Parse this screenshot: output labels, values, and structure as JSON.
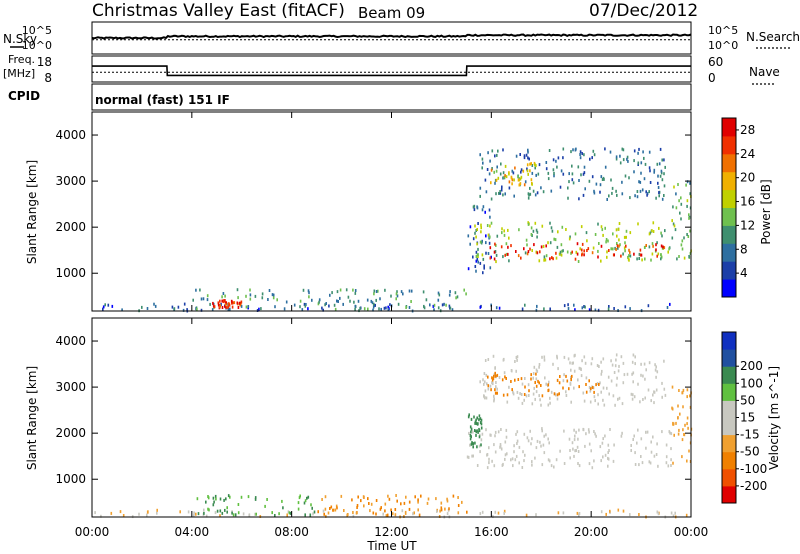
{
  "header": {
    "title": "Christmas Valley East (fitACF)",
    "beam": "Beam 09",
    "date": "07/Dec/2012"
  },
  "labels": {
    "nsky": "N.Sky",
    "nsearch": "N.Search",
    "freq": "Freq.",
    "mhz": "[MHz]",
    "nave": "Nave",
    "cpid": "CPID",
    "cpid_value": "normal (fast) 151 IF"
  },
  "ticks": {
    "noise_left": [
      "10^5",
      "10^0"
    ],
    "noise_right": [
      "10^5",
      "10^0"
    ],
    "freq_left": [
      "18",
      "8"
    ],
    "nave_right": [
      "60",
      "0"
    ]
  },
  "colors": {
    "power": [
      "#0000ff",
      "#1c3fa8",
      "#2e6fa0",
      "#3f8f6f",
      "#6fc04f",
      "#c0d000",
      "#f0b000",
      "#f07000",
      "#f03000",
      "#e00000"
    ],
    "velocity": [
      "#e00000",
      "#f05000",
      "#f08000",
      "#f0a030",
      "#c8c8c0",
      "#c8c8c0",
      "#60c040",
      "#3a8a50",
      "#2050a0",
      "#1030c0"
    ]
  },
  "chart_data": [
    {
      "type": "line",
      "name": "noise-panel",
      "series": [
        {
          "name": "N.Sky",
          "x": [
            "00:00",
            "03:00",
            "03:01",
            "15:00",
            "15:01",
            "24:00"
          ],
          "y_exp": [
            2.5,
            2.5,
            2.8,
            2.8,
            3.0,
            3.0
          ]
        },
        {
          "name": "N.Search",
          "x": [
            "00:00",
            "24:00"
          ],
          "y_exp": [
            2.2,
            2.2
          ]
        }
      ],
      "ylim_exp": [
        0,
        5
      ]
    },
    {
      "type": "line",
      "name": "freq-nave-panel",
      "series": [
        {
          "name": "Freq. [MHz]",
          "x": [
            "00:00",
            "03:00",
            "03:01",
            "15:00",
            "15:01",
            "24:00"
          ],
          "y": [
            14.3,
            14.3,
            10.1,
            10.1,
            14.3,
            14.3
          ]
        },
        {
          "name": "Nave",
          "x": [
            "00:00",
            "24:00"
          ],
          "y": [
            21,
            21
          ]
        }
      ],
      "ylim_freq": [
        8,
        18
      ],
      "ylim_nave": [
        0,
        60
      ]
    },
    {
      "type": "heatmap",
      "name": "power-panel",
      "xlabel": "",
      "ylabel": "Slant Range [km]",
      "xlim": [
        "00:00",
        "24:00"
      ],
      "ylim": [
        180,
        4500
      ],
      "yticks": [
        1000,
        2000,
        3000,
        4000
      ],
      "colorbar": {
        "label": "Power [dB]",
        "ticks": [
          4,
          8,
          12,
          16,
          20,
          24,
          28
        ],
        "range": [
          0,
          30
        ]
      },
      "regions": [
        {
          "t": [
            0.0,
            24.0
          ],
          "r": [
            180,
            330
          ],
          "value": 6
        },
        {
          "t": [
            4.0,
            15.0
          ],
          "r": [
            200,
            650
          ],
          "value": 10
        },
        {
          "t": [
            4.8,
            6.0
          ],
          "r": [
            250,
            420
          ],
          "value": 26
        },
        {
          "t": [
            15.0,
            16.0
          ],
          "r": [
            1000,
            2500
          ],
          "value": 6
        },
        {
          "t": [
            15.3,
            23.2
          ],
          "r": [
            1250,
            2100
          ],
          "value": 14
        },
        {
          "t": [
            15.8,
            23.0
          ],
          "r": [
            1300,
            1650
          ],
          "value": 26
        },
        {
          "t": [
            15.5,
            23.0
          ],
          "r": [
            2600,
            3700
          ],
          "value": 8
        },
        {
          "t": [
            15.8,
            17.8
          ],
          "r": [
            2900,
            3400
          ],
          "value": 18
        },
        {
          "t": [
            23.2,
            24.0
          ],
          "r": [
            1300,
            3000
          ],
          "value": 12
        }
      ]
    },
    {
      "type": "heatmap",
      "name": "velocity-panel",
      "xlabel": "Time UT",
      "ylabel": "Slant Range [km]",
      "xticks": [
        "00:00",
        "04:00",
        "08:00",
        "12:00",
        "16:00",
        "20:00",
        "00:00"
      ],
      "xlim": [
        "00:00",
        "24:00"
      ],
      "ylim": [
        180,
        4500
      ],
      "yticks": [
        1000,
        2000,
        3000,
        4000
      ],
      "colorbar": {
        "label": "Velocity [m s^-1]",
        "ticks": [
          -200,
          -100,
          -50,
          -15,
          15,
          50,
          100,
          200
        ]
      },
      "regions": [
        {
          "t": [
            0.0,
            24.0
          ],
          "r": [
            180,
            330
          ],
          "value": -15
        },
        {
          "t": [
            4.0,
            9.0
          ],
          "r": [
            200,
            650
          ],
          "value": 50
        },
        {
          "t": [
            9.0,
            15.0
          ],
          "r": [
            200,
            650
          ],
          "value": -50
        },
        {
          "t": [
            15.0,
            23.2
          ],
          "r": [
            1250,
            2100
          ],
          "value": 0
        },
        {
          "t": [
            15.5,
            23.0
          ],
          "r": [
            2600,
            3700
          ],
          "value": 0
        },
        {
          "t": [
            15.8,
            20.5
          ],
          "r": [
            2800,
            3300
          ],
          "value": -60
        },
        {
          "t": [
            15.0,
            15.6
          ],
          "r": [
            1700,
            2400
          ],
          "value": 60
        },
        {
          "t": [
            23.2,
            24.0
          ],
          "r": [
            1300,
            3000
          ],
          "value": -40
        }
      ]
    }
  ]
}
